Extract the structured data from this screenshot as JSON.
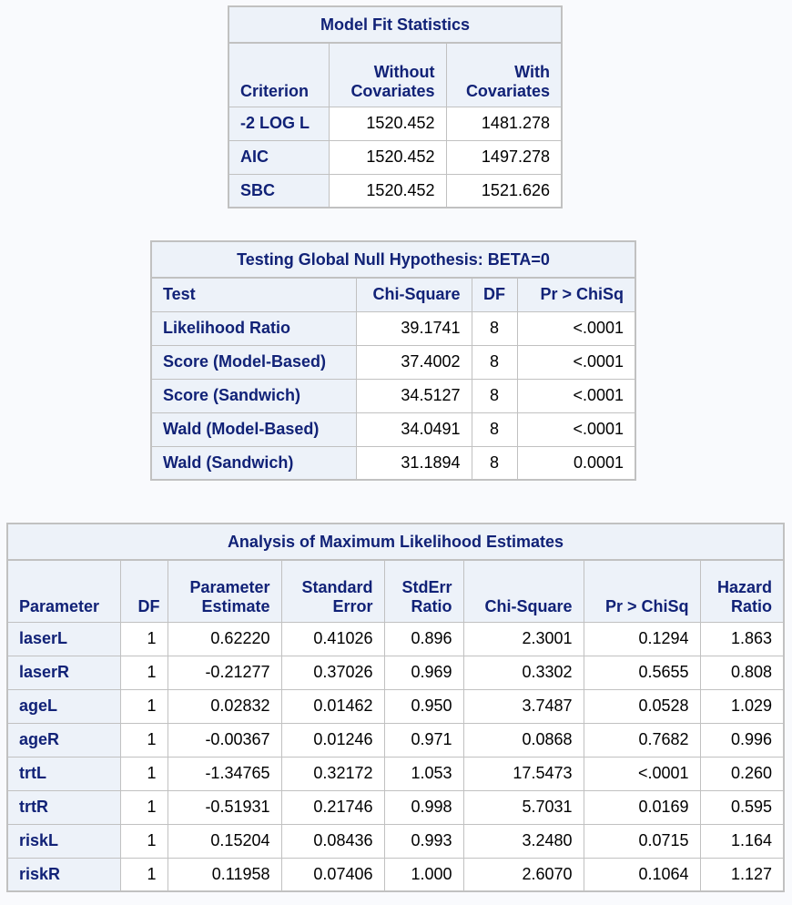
{
  "model_fit": {
    "title": "Model Fit Statistics",
    "headers": [
      "Criterion",
      "Without Covariates",
      "With Covariates"
    ],
    "header_lines": [
      [
        "Criterion"
      ],
      [
        "Without",
        "Covariates"
      ],
      [
        "With",
        "Covariates"
      ]
    ],
    "rows": [
      [
        "-2 LOG L",
        "1520.452",
        "1481.278"
      ],
      [
        "AIC",
        "1520.452",
        "1497.278"
      ],
      [
        "SBC",
        "1520.452",
        "1521.626"
      ]
    ]
  },
  "global_null": {
    "title": "Testing Global Null Hypothesis: BETA=0",
    "headers": [
      "Test",
      "Chi-Square",
      "DF",
      "Pr > ChiSq"
    ],
    "rows": [
      [
        "Likelihood Ratio",
        "39.1741",
        "8",
        "<.0001"
      ],
      [
        "Score (Model-Based)",
        "37.4002",
        "8",
        "<.0001"
      ],
      [
        "Score (Sandwich)",
        "34.5127",
        "8",
        "<.0001"
      ],
      [
        "Wald (Model-Based)",
        "34.0491",
        "8",
        "<.0001"
      ],
      [
        "Wald (Sandwich)",
        "31.1894",
        "8",
        "0.0001"
      ]
    ]
  },
  "mle": {
    "title": "Analysis of Maximum Likelihood Estimates",
    "header_lines": [
      [
        "Parameter"
      ],
      [
        "DF"
      ],
      [
        "Parameter",
        "Estimate"
      ],
      [
        "Standard",
        "Error"
      ],
      [
        "StdErr",
        "Ratio"
      ],
      [
        "Chi-Square"
      ],
      [
        "Pr > ChiSq"
      ],
      [
        "Hazard",
        "Ratio"
      ]
    ],
    "rows": [
      [
        "laserL",
        "1",
        "0.62220",
        "0.41026",
        "0.896",
        "2.3001",
        "0.1294",
        "1.863"
      ],
      [
        "laserR",
        "1",
        "-0.21277",
        "0.37026",
        "0.969",
        "0.3302",
        "0.5655",
        "0.808"
      ],
      [
        "ageL",
        "1",
        "0.02832",
        "0.01462",
        "0.950",
        "3.7487",
        "0.0528",
        "1.029"
      ],
      [
        "ageR",
        "1",
        "-0.00367",
        "0.01246",
        "0.971",
        "0.0868",
        "0.7682",
        "0.996"
      ],
      [
        "trtL",
        "1",
        "-1.34765",
        "0.32172",
        "1.053",
        "17.5473",
        "<.0001",
        "0.260"
      ],
      [
        "trtR",
        "1",
        "-0.51931",
        "0.21746",
        "0.998",
        "5.7031",
        "0.0169",
        "0.595"
      ],
      [
        "riskL",
        "1",
        "0.15204",
        "0.08436",
        "0.993",
        "3.2480",
        "0.0715",
        "1.164"
      ],
      [
        "riskR",
        "1",
        "0.11958",
        "0.07406",
        "1.000",
        "2.6070",
        "0.1064",
        "1.127"
      ]
    ]
  }
}
